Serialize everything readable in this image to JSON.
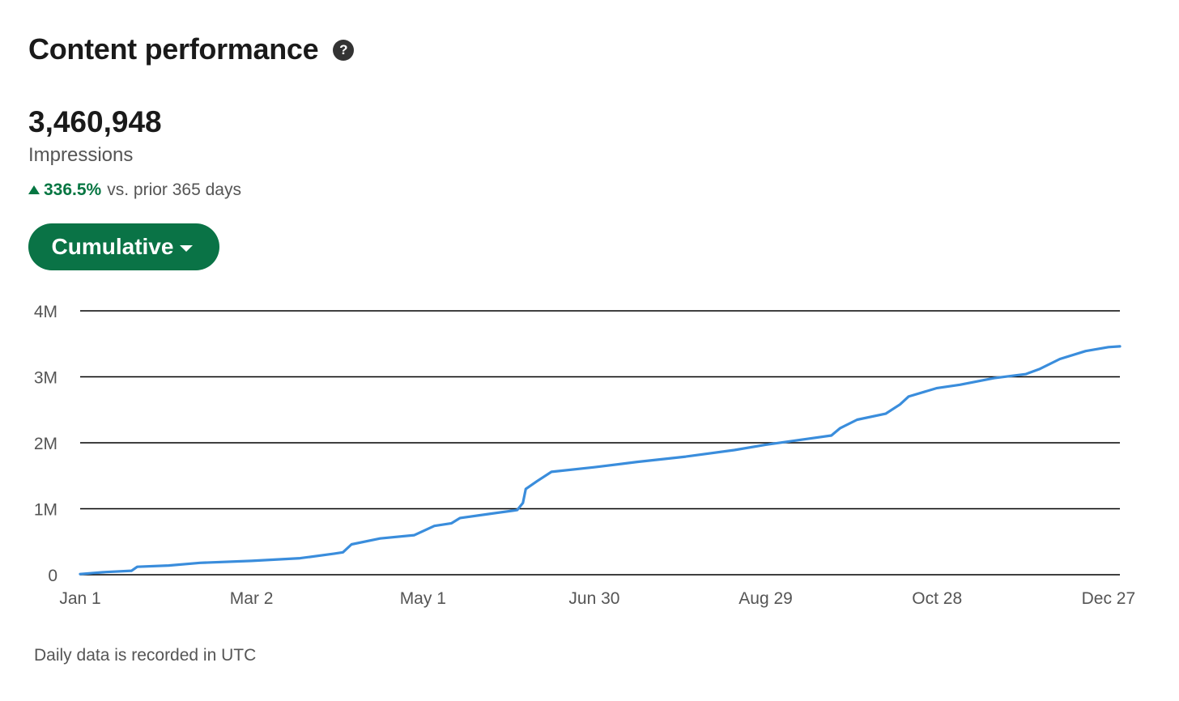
{
  "header": {
    "title": "Content performance",
    "help_icon": "question-circle-icon"
  },
  "metric": {
    "value": "3,460,948",
    "label": "Impressions",
    "delta_value": "336.5%",
    "delta_text": "vs. prior 365 days",
    "delta_color": "#057642"
  },
  "mode_button": {
    "label": "Cumulative",
    "icon": "caret-down-icon",
    "color": "#0a7346"
  },
  "footnote": "Daily data is recorded in UTC",
  "chart_data": {
    "type": "line",
    "title": "",
    "xlabel": "",
    "ylabel": "",
    "ylim": [
      0,
      4000000
    ],
    "yticks": [
      0,
      1000000,
      2000000,
      3000000,
      4000000
    ],
    "ytick_labels": [
      "0",
      "1M",
      "2M",
      "3M",
      "4M"
    ],
    "xlim": [
      "Jan 1",
      "Dec 31"
    ],
    "xtick_labels": [
      "Jan 1",
      "Mar 2",
      "May 1",
      "Jun 30",
      "Aug 29",
      "Oct 28",
      "Dec 27"
    ],
    "grid": true,
    "line_color": "#3a8ddc",
    "series": [
      {
        "name": "",
        "points": [
          [
            "Jan 1",
            10000
          ],
          [
            "Jan 10",
            40000
          ],
          [
            "Jan 19",
            60000
          ],
          [
            "Jan 21",
            120000
          ],
          [
            "Feb 1",
            140000
          ],
          [
            "Feb 12",
            180000
          ],
          [
            "Mar 2",
            210000
          ],
          [
            "Mar 19",
            250000
          ],
          [
            "Mar 31",
            320000
          ],
          [
            "Apr 3",
            340000
          ],
          [
            "Apr 6",
            460000
          ],
          [
            "Apr 16",
            550000
          ],
          [
            "Apr 28",
            600000
          ],
          [
            "May 5",
            740000
          ],
          [
            "May 11",
            780000
          ],
          [
            "May 14",
            860000
          ],
          [
            "May 24",
            920000
          ],
          [
            "Jun 3",
            980000
          ],
          [
            "Jun 5",
            1090000
          ],
          [
            "Jun 6",
            1300000
          ],
          [
            "Jun 10",
            1420000
          ],
          [
            "Jun 15",
            1560000
          ],
          [
            "Jun 30",
            1630000
          ],
          [
            "Jul 15",
            1710000
          ],
          [
            "Aug 1",
            1790000
          ],
          [
            "Aug 18",
            1890000
          ],
          [
            "Aug 29",
            1970000
          ],
          [
            "Sep 11",
            2050000
          ],
          [
            "Sep 21",
            2110000
          ],
          [
            "Sep 24",
            2220000
          ],
          [
            "Sep 30",
            2350000
          ],
          [
            "Oct 10",
            2440000
          ],
          [
            "Oct 15",
            2580000
          ],
          [
            "Oct 18",
            2700000
          ],
          [
            "Oct 28",
            2830000
          ],
          [
            "Nov 5",
            2880000
          ],
          [
            "Nov 17",
            2980000
          ],
          [
            "Nov 28",
            3040000
          ],
          [
            "Dec 3",
            3120000
          ],
          [
            "Dec 10",
            3270000
          ],
          [
            "Dec 19",
            3390000
          ],
          [
            "Dec 27",
            3450000
          ],
          [
            "Dec 31",
            3460948
          ]
        ]
      }
    ]
  }
}
